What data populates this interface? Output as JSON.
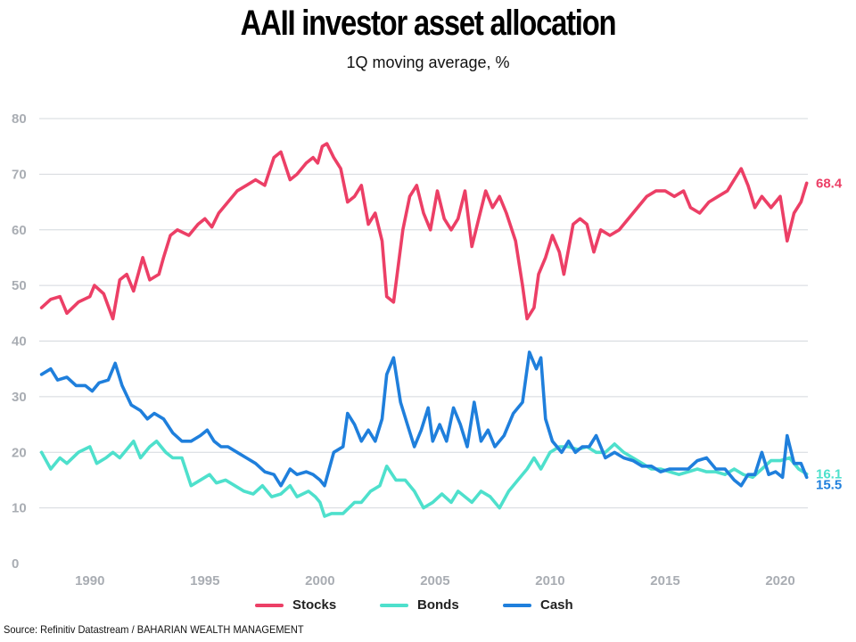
{
  "header": {
    "title": "AAII investor asset allocation",
    "subtitle": "1Q moving average, %"
  },
  "source": "Source: Refinitiv Datastream / BAHARIAN WEALTH MANAGEMENT",
  "colors": {
    "stocks": "#ec3f66",
    "bonds": "#4ee0cc",
    "cash": "#1f7fdc",
    "grid": "#d4d8dd",
    "ticks": "#a9adb3"
  },
  "chart_data": {
    "type": "line",
    "title": "AAII investor asset allocation",
    "subtitle": "1Q moving average, %",
    "xlim": [
      1987.8,
      2021.2
    ],
    "ylim": [
      0,
      80
    ],
    "x_ticks": [
      1990,
      1995,
      2000,
      2005,
      2010,
      2015,
      2020
    ],
    "y_ticks": [
      0,
      10,
      20,
      30,
      40,
      50,
      60,
      70,
      80
    ],
    "grid": "horizontal",
    "legend": "bottom",
    "series": [
      {
        "name": "Stocks",
        "color": "#ec3f66",
        "end_label": "68.4",
        "points": [
          [
            1987.9,
            46
          ],
          [
            1988.3,
            47.5
          ],
          [
            1988.7,
            48
          ],
          [
            1989.0,
            45
          ],
          [
            1989.5,
            47
          ],
          [
            1990.0,
            48
          ],
          [
            1990.2,
            50
          ],
          [
            1990.6,
            48.5
          ],
          [
            1991.0,
            44
          ],
          [
            1991.3,
            51
          ],
          [
            1991.6,
            52
          ],
          [
            1991.9,
            49
          ],
          [
            1992.3,
            55
          ],
          [
            1992.6,
            51
          ],
          [
            1993.0,
            52
          ],
          [
            1993.2,
            55
          ],
          [
            1993.5,
            59
          ],
          [
            1993.8,
            60
          ],
          [
            1994.3,
            59
          ],
          [
            1994.7,
            61
          ],
          [
            1995.0,
            62
          ],
          [
            1995.3,
            60.5
          ],
          [
            1995.6,
            63
          ],
          [
            1996.0,
            65
          ],
          [
            1996.4,
            67
          ],
          [
            1996.8,
            68
          ],
          [
            1997.2,
            69
          ],
          [
            1997.6,
            68
          ],
          [
            1998.0,
            73
          ],
          [
            1998.3,
            74
          ],
          [
            1998.7,
            69
          ],
          [
            1999.0,
            70
          ],
          [
            1999.4,
            72
          ],
          [
            1999.7,
            73
          ],
          [
            1999.9,
            72
          ],
          [
            2000.1,
            75
          ],
          [
            2000.3,
            75.5
          ],
          [
            2000.6,
            73
          ],
          [
            2000.9,
            71
          ],
          [
            2001.2,
            65
          ],
          [
            2001.5,
            66
          ],
          [
            2001.8,
            68
          ],
          [
            2002.1,
            61
          ],
          [
            2002.4,
            63
          ],
          [
            2002.7,
            58
          ],
          [
            2002.9,
            48
          ],
          [
            2003.2,
            47
          ],
          [
            2003.6,
            60
          ],
          [
            2003.9,
            66
          ],
          [
            2004.2,
            68
          ],
          [
            2004.5,
            63
          ],
          [
            2004.8,
            60
          ],
          [
            2005.1,
            67
          ],
          [
            2005.4,
            62
          ],
          [
            2005.7,
            60
          ],
          [
            2006.0,
            62
          ],
          [
            2006.3,
            67
          ],
          [
            2006.6,
            57
          ],
          [
            2006.9,
            62
          ],
          [
            2007.2,
            67
          ],
          [
            2007.5,
            64
          ],
          [
            2007.8,
            66
          ],
          [
            2008.1,
            63
          ],
          [
            2008.5,
            58
          ],
          [
            2008.8,
            50
          ],
          [
            2009.0,
            44
          ],
          [
            2009.3,
            46
          ],
          [
            2009.5,
            52
          ],
          [
            2009.8,
            55
          ],
          [
            2010.1,
            59
          ],
          [
            2010.4,
            56
          ],
          [
            2010.6,
            52
          ],
          [
            2011.0,
            61
          ],
          [
            2011.3,
            62
          ],
          [
            2011.6,
            61
          ],
          [
            2011.9,
            56
          ],
          [
            2012.2,
            60
          ],
          [
            2012.6,
            59
          ],
          [
            2013.0,
            60
          ],
          [
            2013.4,
            62
          ],
          [
            2013.8,
            64
          ],
          [
            2014.2,
            66
          ],
          [
            2014.6,
            67
          ],
          [
            2015.0,
            67
          ],
          [
            2015.4,
            66
          ],
          [
            2015.8,
            67
          ],
          [
            2016.1,
            64
          ],
          [
            2016.5,
            63
          ],
          [
            2016.9,
            65
          ],
          [
            2017.3,
            66
          ],
          [
            2017.7,
            67
          ],
          [
            2018.0,
            69
          ],
          [
            2018.3,
            71
          ],
          [
            2018.6,
            68
          ],
          [
            2018.9,
            64
          ],
          [
            2019.2,
            66
          ],
          [
            2019.6,
            64
          ],
          [
            2020.0,
            66
          ],
          [
            2020.3,
            58
          ],
          [
            2020.6,
            63
          ],
          [
            2020.9,
            65
          ],
          [
            2021.15,
            68.4
          ]
        ]
      },
      {
        "name": "Bonds",
        "color": "#4ee0cc",
        "end_label": "16.1",
        "points": [
          [
            1987.9,
            20
          ],
          [
            1988.3,
            17
          ],
          [
            1988.7,
            19
          ],
          [
            1989.0,
            18
          ],
          [
            1989.5,
            20
          ],
          [
            1990.0,
            21
          ],
          [
            1990.3,
            18
          ],
          [
            1990.7,
            19
          ],
          [
            1991.0,
            20
          ],
          [
            1991.3,
            19
          ],
          [
            1991.6,
            20.5
          ],
          [
            1991.9,
            22
          ],
          [
            1992.2,
            19
          ],
          [
            1992.6,
            21
          ],
          [
            1992.9,
            22
          ],
          [
            1993.3,
            20
          ],
          [
            1993.6,
            19
          ],
          [
            1994.0,
            19
          ],
          [
            1994.4,
            14
          ],
          [
            1994.8,
            15
          ],
          [
            1995.2,
            16
          ],
          [
            1995.5,
            14.5
          ],
          [
            1995.9,
            15
          ],
          [
            1996.3,
            14
          ],
          [
            1996.7,
            13
          ],
          [
            1997.1,
            12.5
          ],
          [
            1997.5,
            14
          ],
          [
            1997.9,
            12
          ],
          [
            1998.3,
            12.5
          ],
          [
            1998.7,
            14
          ],
          [
            1999.0,
            12
          ],
          [
            1999.5,
            13
          ],
          [
            1999.8,
            12
          ],
          [
            2000.0,
            11
          ],
          [
            2000.2,
            8.5
          ],
          [
            2000.5,
            9
          ],
          [
            2001.0,
            9
          ],
          [
            2001.5,
            11
          ],
          [
            2001.8,
            11
          ],
          [
            2002.2,
            13
          ],
          [
            2002.6,
            14
          ],
          [
            2002.9,
            17.5
          ],
          [
            2003.3,
            15
          ],
          [
            2003.7,
            15
          ],
          [
            2004.1,
            13
          ],
          [
            2004.5,
            10
          ],
          [
            2004.9,
            11
          ],
          [
            2005.3,
            12.5
          ],
          [
            2005.7,
            11
          ],
          [
            2006.0,
            13
          ],
          [
            2006.3,
            12
          ],
          [
            2006.6,
            11
          ],
          [
            2007.0,
            13
          ],
          [
            2007.4,
            12
          ],
          [
            2007.8,
            10
          ],
          [
            2008.2,
            13
          ],
          [
            2008.6,
            15
          ],
          [
            2009.0,
            17
          ],
          [
            2009.3,
            19
          ],
          [
            2009.6,
            17
          ],
          [
            2010.0,
            20
          ],
          [
            2010.4,
            21
          ],
          [
            2010.8,
            21
          ],
          [
            2011.2,
            20.5
          ],
          [
            2011.6,
            21
          ],
          [
            2012.0,
            20
          ],
          [
            2012.4,
            20
          ],
          [
            2012.8,
            21.5
          ],
          [
            2013.2,
            20
          ],
          [
            2013.6,
            19
          ],
          [
            2014.0,
            18
          ],
          [
            2014.4,
            17
          ],
          [
            2014.8,
            17
          ],
          [
            2015.2,
            16.5
          ],
          [
            2015.6,
            16
          ],
          [
            2016.0,
            16.5
          ],
          [
            2016.4,
            17
          ],
          [
            2016.8,
            16.5
          ],
          [
            2017.2,
            16.5
          ],
          [
            2017.6,
            16
          ],
          [
            2018.0,
            17
          ],
          [
            2018.4,
            16
          ],
          [
            2018.8,
            15.5
          ],
          [
            2019.2,
            17
          ],
          [
            2019.6,
            18.5
          ],
          [
            2020.0,
            18.5
          ],
          [
            2020.4,
            19
          ],
          [
            2020.8,
            17
          ],
          [
            2021.15,
            16.1
          ]
        ]
      },
      {
        "name": "Cash",
        "color": "#1f7fdc",
        "end_label": "15.5",
        "points": [
          [
            1987.9,
            34
          ],
          [
            1988.3,
            35
          ],
          [
            1988.6,
            33
          ],
          [
            1989.0,
            33.5
          ],
          [
            1989.4,
            32
          ],
          [
            1989.8,
            32
          ],
          [
            1990.1,
            31
          ],
          [
            1990.4,
            32.5
          ],
          [
            1990.8,
            33
          ],
          [
            1991.1,
            36
          ],
          [
            1991.4,
            32
          ],
          [
            1991.8,
            28.5
          ],
          [
            1992.2,
            27.5
          ],
          [
            1992.5,
            26
          ],
          [
            1992.8,
            27
          ],
          [
            1993.2,
            26
          ],
          [
            1993.6,
            23.5
          ],
          [
            1994.0,
            22
          ],
          [
            1994.4,
            22
          ],
          [
            1994.8,
            23
          ],
          [
            1995.1,
            24
          ],
          [
            1995.4,
            22
          ],
          [
            1995.7,
            21
          ],
          [
            1996.0,
            21
          ],
          [
            1996.4,
            20
          ],
          [
            1996.8,
            19
          ],
          [
            1997.2,
            18
          ],
          [
            1997.6,
            16.5
          ],
          [
            1998.0,
            16
          ],
          [
            1998.3,
            14
          ],
          [
            1998.7,
            17
          ],
          [
            1999.0,
            16
          ],
          [
            1999.4,
            16.5
          ],
          [
            1999.7,
            16
          ],
          [
            2000.0,
            15
          ],
          [
            2000.2,
            14
          ],
          [
            2000.6,
            20
          ],
          [
            2001.0,
            21
          ],
          [
            2001.2,
            27
          ],
          [
            2001.5,
            25
          ],
          [
            2001.8,
            22
          ],
          [
            2002.1,
            24
          ],
          [
            2002.4,
            22
          ],
          [
            2002.7,
            26
          ],
          [
            2002.9,
            34
          ],
          [
            2003.2,
            37
          ],
          [
            2003.5,
            29
          ],
          [
            2003.8,
            25
          ],
          [
            2004.1,
            21
          ],
          [
            2004.4,
            24
          ],
          [
            2004.7,
            28
          ],
          [
            2004.9,
            22
          ],
          [
            2005.2,
            25
          ],
          [
            2005.5,
            22
          ],
          [
            2005.8,
            28
          ],
          [
            2006.1,
            25
          ],
          [
            2006.4,
            21
          ],
          [
            2006.7,
            29
          ],
          [
            2007.0,
            22
          ],
          [
            2007.3,
            24
          ],
          [
            2007.6,
            21
          ],
          [
            2008.0,
            23
          ],
          [
            2008.4,
            27
          ],
          [
            2008.8,
            29
          ],
          [
            2009.1,
            38
          ],
          [
            2009.4,
            35
          ],
          [
            2009.6,
            37
          ],
          [
            2009.8,
            26
          ],
          [
            2010.1,
            22
          ],
          [
            2010.5,
            20
          ],
          [
            2010.8,
            22
          ],
          [
            2011.1,
            20
          ],
          [
            2011.4,
            21
          ],
          [
            2011.7,
            21
          ],
          [
            2012.0,
            23
          ],
          [
            2012.4,
            19
          ],
          [
            2012.8,
            20
          ],
          [
            2013.2,
            19
          ],
          [
            2013.6,
            18.5
          ],
          [
            2014.0,
            17.5
          ],
          [
            2014.4,
            17.5
          ],
          [
            2014.8,
            16.5
          ],
          [
            2015.2,
            17
          ],
          [
            2015.6,
            17
          ],
          [
            2016.0,
            17
          ],
          [
            2016.4,
            18.5
          ],
          [
            2016.8,
            19
          ],
          [
            2017.2,
            17
          ],
          [
            2017.6,
            17
          ],
          [
            2018.0,
            15
          ],
          [
            2018.3,
            14
          ],
          [
            2018.6,
            16
          ],
          [
            2018.9,
            16
          ],
          [
            2019.2,
            20
          ],
          [
            2019.5,
            16
          ],
          [
            2019.8,
            16.5
          ],
          [
            2020.1,
            15.5
          ],
          [
            2020.3,
            23
          ],
          [
            2020.6,
            18
          ],
          [
            2020.9,
            18
          ],
          [
            2021.15,
            15.5
          ]
        ]
      }
    ]
  }
}
